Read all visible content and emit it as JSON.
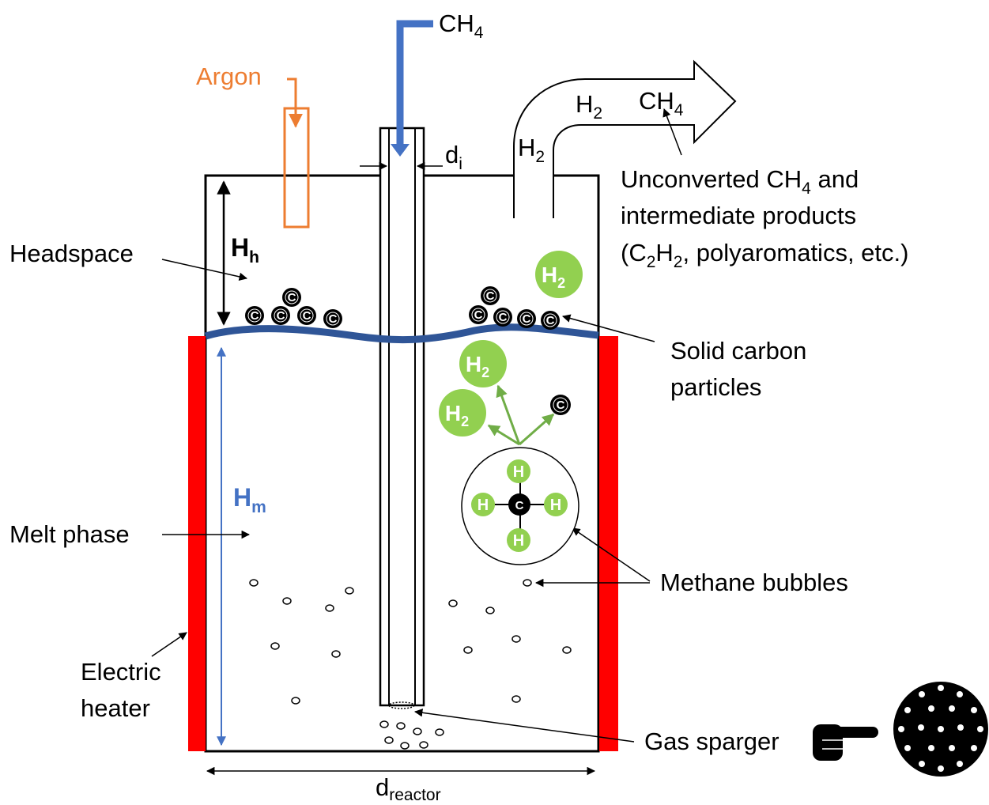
{
  "colors": {
    "heater": "#ff0000",
    "melt_surface": "#2f5597",
    "methane_pipe": "#4472c4",
    "argon": "#ed7d31",
    "hydrogen": "#92d050",
    "dimension_blue": "#4472c4",
    "black": "#000000"
  },
  "labels": {
    "methane_inlet": "CH",
    "methane_inlet_sub": "4",
    "argon": "Argon",
    "inner_diameter": "d",
    "inner_diameter_sub": "i",
    "outlet_h2_a": "H",
    "outlet_h2_a_sub": "2",
    "outlet_ch4": "CH",
    "outlet_ch4_sub": "4",
    "outlet_h2_b": "H",
    "outlet_h2_b_sub": "2",
    "unconverted_line1_a": "Unconverted CH",
    "unconverted_line1_sub": "4",
    "unconverted_line1_b": " and",
    "unconverted_line2": "intermediate products",
    "unconverted_line3_a": "(C",
    "unconverted_line3_sub1": "2",
    "unconverted_line3_b": "H",
    "unconverted_line3_sub2": "2",
    "unconverted_line3_c": ", polyaromatics, etc.)",
    "headspace": "Headspace",
    "headspace_height": "H",
    "headspace_height_sub": "h",
    "melt_height": "H",
    "melt_height_sub": "m",
    "solid_carbon_line1": "Solid carbon",
    "solid_carbon_line2": "particles",
    "melt_phase": "Melt phase",
    "methane_bubbles": "Methane bubbles",
    "electric_heater_line1": "Electric",
    "electric_heater_line2": "heater",
    "gas_sparger": "Gas sparger",
    "reactor_diameter": "d",
    "reactor_diameter_sub": "reactor"
  },
  "molecule": {
    "carbon": "C",
    "hydrogen": "H",
    "h2": "H",
    "h2_sub": "2"
  }
}
